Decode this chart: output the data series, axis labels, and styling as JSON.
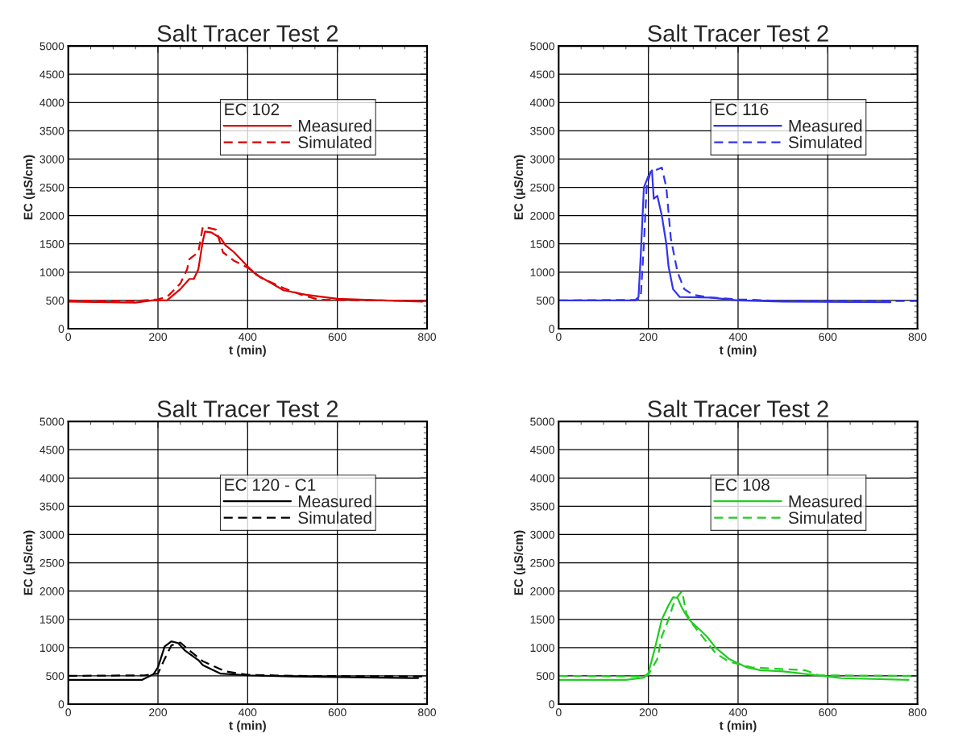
{
  "chart_data": [
    {
      "type": "line",
      "title": "Salt Tracer Test 2",
      "xlabel": "t (min)",
      "ylabel": "EC (μS/cm)",
      "legend_title": "EC 102",
      "xlim": [
        0,
        800
      ],
      "xticks": [
        0,
        200,
        400,
        600,
        800
      ],
      "ylim": [
        0,
        5000
      ],
      "yticks": [
        0,
        500,
        1000,
        1500,
        2000,
        2500,
        3000,
        3500,
        4000,
        4500,
        5000
      ],
      "grid": true,
      "legend": "top right",
      "series": [
        {
          "name": "Measured",
          "color": "#dd0000",
          "line_style": "solid",
          "x": [
            0,
            150,
            190,
            220,
            250,
            270,
            280,
            290,
            300,
            305,
            320,
            340,
            350,
            370,
            400,
            420,
            450,
            480,
            530,
            600,
            700,
            790
          ],
          "values": [
            480,
            460,
            505,
            500,
            700,
            880,
            880,
            1050,
            1550,
            1720,
            1700,
            1600,
            1480,
            1350,
            1100,
            950,
            820,
            680,
            600,
            530,
            500,
            480
          ]
        },
        {
          "name": "Simulated",
          "color": "#dd0000",
          "line_style": "dashed",
          "x": [
            0,
            150,
            200,
            220,
            250,
            265,
            270,
            290,
            300,
            315,
            330,
            345,
            370,
            400,
            430,
            480,
            520,
            560,
            600,
            700,
            800
          ],
          "values": [
            500,
            490,
            520,
            560,
            800,
            1050,
            1230,
            1350,
            1800,
            1780,
            1750,
            1350,
            1200,
            1080,
            900,
            720,
            600,
            510,
            510,
            500,
            490
          ]
        }
      ]
    },
    {
      "type": "line",
      "title": "Salt Tracer Test 2",
      "xlabel": "t (min)",
      "ylabel": "EC (μS/cm)",
      "legend_title": "EC 116",
      "xlim": [
        0,
        800
      ],
      "xticks": [
        0,
        200,
        400,
        600,
        800
      ],
      "ylim": [
        0,
        5000
      ],
      "yticks": [
        0,
        500,
        1000,
        1500,
        2000,
        2500,
        3000,
        3500,
        4000,
        4500,
        5000
      ],
      "grid": true,
      "legend": "top right",
      "series": [
        {
          "name": "Measured",
          "color": "#3333ee",
          "line_style": "solid",
          "x": [
            0,
            170,
            178,
            183,
            190,
            200,
            208,
            212,
            220,
            230,
            240,
            245,
            250,
            255,
            270,
            340,
            400,
            500,
            740
          ],
          "values": [
            500,
            500,
            560,
            1300,
            2500,
            2700,
            2800,
            2300,
            2350,
            2000,
            1500,
            1100,
            900,
            700,
            560,
            550,
            500,
            480,
            470
          ]
        },
        {
          "name": "Simulated",
          "color": "#3333ee",
          "line_style": "dashed",
          "x": [
            0,
            175,
            183,
            190,
            196,
            205,
            215,
            230,
            240,
            250,
            265,
            280,
            300,
            340,
            400,
            500,
            800
          ],
          "values": [
            500,
            510,
            560,
            1500,
            2500,
            2780,
            2800,
            2850,
            2500,
            1600,
            1000,
            700,
            600,
            550,
            520,
            490,
            490
          ]
        }
      ]
    },
    {
      "type": "line",
      "title": "Salt Tracer Test 2",
      "xlabel": "t (min)",
      "ylabel": "EC (μS/cm)",
      "legend_title": "EC 120 - C1",
      "xlim": [
        0,
        800
      ],
      "xticks": [
        0,
        200,
        400,
        600,
        800
      ],
      "ylim": [
        0,
        5000
      ],
      "yticks": [
        0,
        500,
        1000,
        1500,
        2000,
        2500,
        3000,
        3500,
        4000,
        4500,
        5000
      ],
      "grid": true,
      "legend": "top right",
      "series": [
        {
          "name": "Measured",
          "color": "#000000",
          "line_style": "solid",
          "x": [
            0,
            165,
            190,
            200,
            215,
            230,
            245,
            260,
            290,
            300,
            340,
            400,
            500,
            780
          ],
          "values": [
            430,
            430,
            530,
            650,
            1020,
            1110,
            1080,
            950,
            780,
            690,
            540,
            510,
            490,
            460
          ]
        },
        {
          "name": "Simulated",
          "color": "#000000",
          "line_style": "dashed",
          "x": [
            0,
            170,
            200,
            215,
            230,
            250,
            270,
            300,
            350,
            400,
            500,
            800
          ],
          "values": [
            500,
            510,
            540,
            800,
            1040,
            1090,
            950,
            760,
            580,
            520,
            500,
            490
          ]
        }
      ]
    },
    {
      "type": "line",
      "title": "Salt Tracer Test 2",
      "xlabel": "t (min)",
      "ylabel": "EC (μS/cm)",
      "legend_title": "EC 108",
      "xlim": [
        0,
        800
      ],
      "xticks": [
        0,
        200,
        400,
        600,
        800
      ],
      "ylim": [
        0,
        5000
      ],
      "yticks": [
        0,
        500,
        1000,
        1500,
        2000,
        2500,
        3000,
        3500,
        4000,
        4500,
        5000
      ],
      "grid": true,
      "legend": "top right",
      "series": [
        {
          "name": "Measured",
          "color": "#22cc22",
          "line_style": "solid",
          "x": [
            0,
            150,
            190,
            200,
            215,
            230,
            245,
            255,
            265,
            275,
            290,
            310,
            330,
            350,
            380,
            420,
            450,
            500,
            600,
            630,
            780
          ],
          "values": [
            430,
            430,
            470,
            550,
            1000,
            1500,
            1750,
            1890,
            1880,
            1700,
            1500,
            1350,
            1200,
            1000,
            800,
            650,
            600,
            580,
            490,
            460,
            430
          ]
        },
        {
          "name": "Simulated",
          "color": "#22cc22",
          "line_style": "dashed",
          "x": [
            0,
            180,
            200,
            220,
            230,
            245,
            255,
            265,
            275,
            285,
            300,
            350,
            380,
            430,
            500,
            550,
            580,
            800
          ],
          "values": [
            500,
            490,
            520,
            800,
            1200,
            1500,
            1750,
            1900,
            2000,
            1600,
            1400,
            900,
            750,
            650,
            620,
            600,
            510,
            500
          ]
        }
      ]
    }
  ]
}
